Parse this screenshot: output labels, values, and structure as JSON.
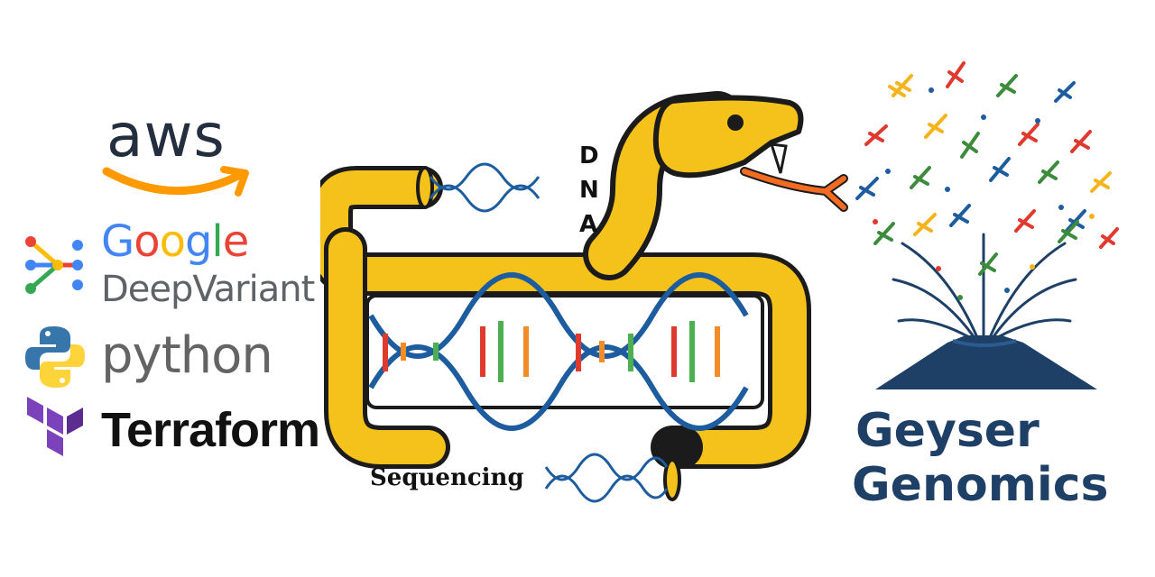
{
  "logos": {
    "aws": {
      "label": "aws"
    },
    "google": {
      "letters": [
        "G",
        "o",
        "o",
        "g",
        "l",
        "e"
      ],
      "sub_label": "DeepVariant"
    },
    "python": {
      "label": "python"
    },
    "terraform": {
      "label": "Terraform"
    }
  },
  "center": {
    "dna_letters": [
      "D",
      "N",
      "A"
    ],
    "sequencing_label": "Sequencing"
  },
  "brand": {
    "line1": "Geyser",
    "line2": "Genomics"
  },
  "colors": {
    "snake": "#f5c21b",
    "outline": "#1b1b1b",
    "helix": "#1d5c9e",
    "brand": "#1e3f66",
    "aws_orange": "#ff9900",
    "google": [
      "#4285f4",
      "#ea4335",
      "#fbbc05",
      "#4285f4",
      "#34a853",
      "#ea4335"
    ],
    "terraform": "#7b42bc",
    "python_blue": "#3776ab",
    "python_yellow": "#ffd43b"
  }
}
